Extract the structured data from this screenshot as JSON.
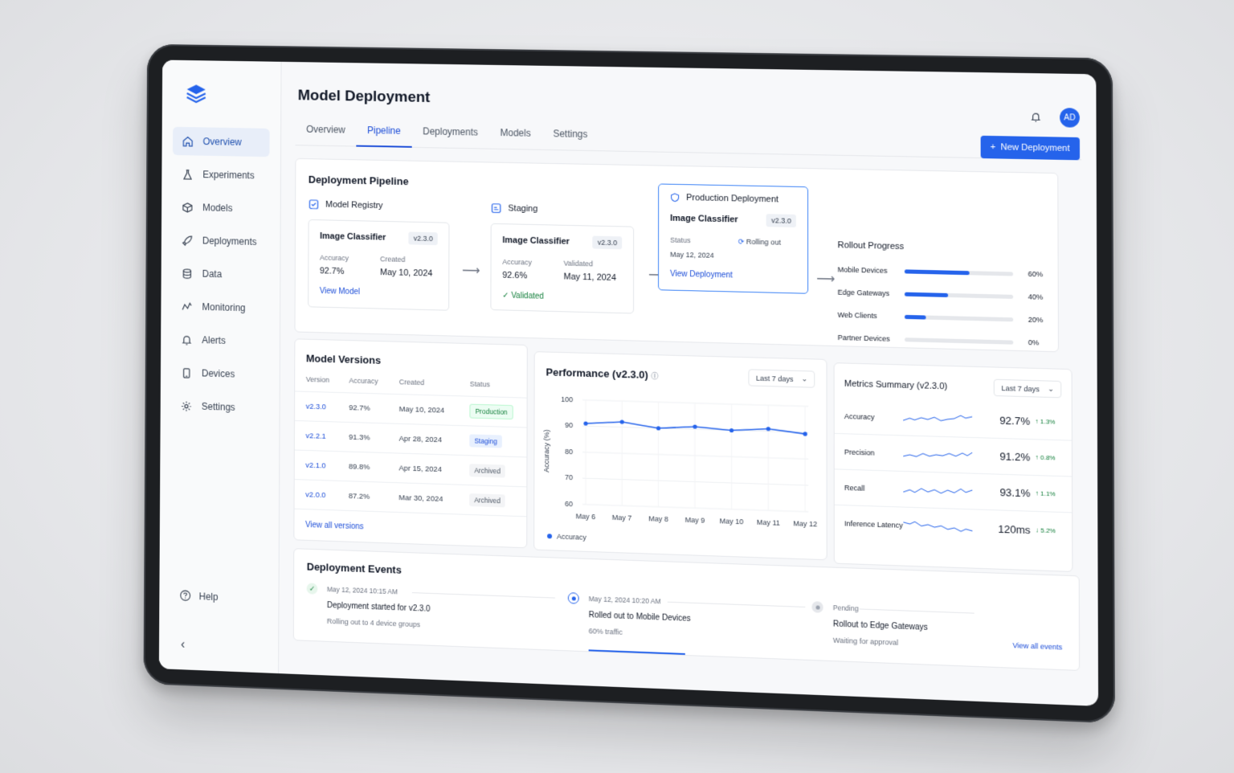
{
  "app": {
    "title": "Model Deployment"
  },
  "sidebar": {
    "items": [
      {
        "label": "Overview",
        "icon": "home-icon",
        "active": true
      },
      {
        "label": "Experiments",
        "icon": "flask-icon"
      },
      {
        "label": "Models",
        "icon": "cube-icon"
      },
      {
        "label": "Deployments",
        "icon": "rocket-icon"
      },
      {
        "label": "Data",
        "icon": "database-icon"
      },
      {
        "label": "Monitoring",
        "icon": "activity-icon"
      },
      {
        "label": "Alerts",
        "icon": "bell-icon"
      },
      {
        "label": "Devices",
        "icon": "device-icon"
      },
      {
        "label": "Settings",
        "icon": "gear-icon"
      }
    ],
    "help_label": "Help"
  },
  "tabs": [
    "Overview",
    "Pipeline",
    "Deployments",
    "Models",
    "Settings"
  ],
  "header": {
    "avatar_initials": "AD",
    "new_button_label": "New Deployment"
  },
  "pipeline": {
    "title": "Deployment Pipeline",
    "registry": {
      "stage": "Model Registry",
      "name": "Image Classifier",
      "version": "v2.3.0",
      "acc_label": "Accuracy",
      "acc": "92.7%",
      "created_label": "Created",
      "created": "May 10, 2024",
      "link": "View Model"
    },
    "staging": {
      "stage": "Staging",
      "name": "Image Classifier",
      "version": "v2.3.0",
      "acc_label": "Accuracy",
      "acc": "92.6%",
      "validated_label": "Validated",
      "validated": "May 11, 2024",
      "status": "Validated"
    },
    "production": {
      "stage": "Production Deployment",
      "name": "Image Classifier",
      "version": "v2.3.0",
      "status_label": "Status",
      "status": "Rolling out",
      "date": "May 12, 2024",
      "link": "View Deployment"
    },
    "rollout": {
      "title": "Rollout Progress",
      "rows": [
        {
          "name": "Mobile Devices",
          "pct": "60%",
          "value": 0.6
        },
        {
          "name": "Edge Gateways",
          "pct": "40%",
          "value": 0.4
        },
        {
          "name": "Web Clients",
          "pct": "20%",
          "value": 0.2
        },
        {
          "name": "Partner Devices",
          "pct": "0%",
          "value": 0
        }
      ]
    }
  },
  "versions": {
    "title": "Model Versions",
    "columns": [
      "Version",
      "Accuracy",
      "Created",
      "Status"
    ],
    "rows": [
      {
        "version": "v2.3.0",
        "accuracy": "92.7%",
        "created": "May 10, 2024",
        "status": "Production"
      },
      {
        "version": "v2.2.1",
        "accuracy": "91.3%",
        "created": "Apr 28, 2024",
        "status": "Staging"
      },
      {
        "version": "v2.1.0",
        "accuracy": "89.8%",
        "created": "Apr 15, 2024",
        "status": "Archived"
      },
      {
        "version": "v2.0.0",
        "accuracy": "87.2%",
        "created": "Mar 30, 2024",
        "status": "Archived"
      }
    ],
    "link": "View all versions"
  },
  "performance": {
    "title": "Performance (v2.3.0)",
    "range": "Last 7 days",
    "legend": "Accuracy"
  },
  "chart_data": {
    "type": "line",
    "categories": [
      "May 6",
      "May 7",
      "May 8",
      "May 9",
      "May 10",
      "May 11",
      "May 12"
    ],
    "series": [
      {
        "name": "Accuracy",
        "values": [
          91,
          92,
          90,
          91,
          90,
          91,
          89.5
        ]
      }
    ],
    "ylabel": "Accuracy (%)",
    "ylim": [
      60,
      100
    ],
    "yticks": [
      100,
      90,
      80,
      70,
      60
    ],
    "grid": true,
    "legend": "bottom-left"
  },
  "metrics": {
    "title": "Metrics Summary (v2.3.0)",
    "range": "Last 7 days",
    "rows": [
      {
        "name": "Accuracy",
        "value": "92.7%",
        "delta": "↑ 1.3%"
      },
      {
        "name": "Precision",
        "value": "91.2%",
        "delta": "↑ 0.8%"
      },
      {
        "name": "Recall",
        "value": "93.1%",
        "delta": "↑ 1.1%"
      },
      {
        "name": "Inference Latency",
        "value": "120ms",
        "delta": "↓ 5.2%"
      }
    ]
  },
  "events": {
    "title": "Deployment Events",
    "items": [
      {
        "time": "May 12, 2024 10:15 AM",
        "title": "Deployment started for v2.3.0",
        "sub": "Rolling out to 4 device groups"
      },
      {
        "time": "May 12, 2024 10:20 AM",
        "title": "Rolled out to Mobile Devices",
        "sub": "60% traffic"
      },
      {
        "time": "Pending",
        "title": "Rollout to Edge Gateways",
        "sub": "Waiting for approval"
      }
    ],
    "link": "View all events"
  },
  "colors": {
    "accent": "#2563eb",
    "success": "#15803d"
  }
}
